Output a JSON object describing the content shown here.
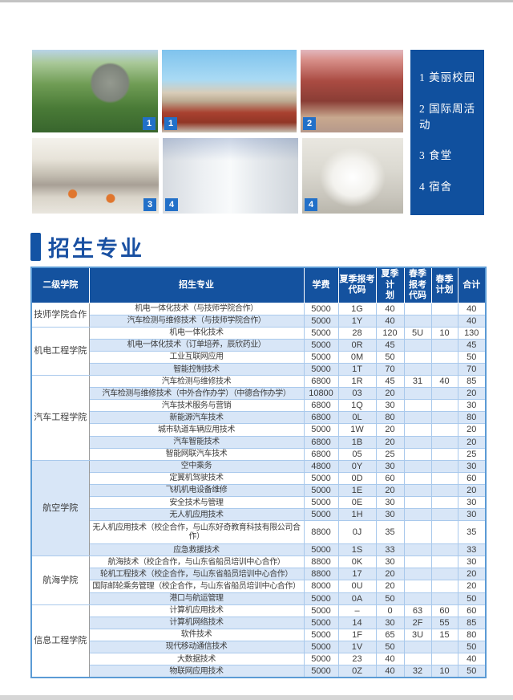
{
  "gallery": {
    "photos": [
      {
        "name": "campus-sculpture",
        "badge": "1"
      },
      {
        "name": "campus-plaza",
        "badge": "1"
      },
      {
        "name": "international-week",
        "badge": "2"
      },
      {
        "name": "canteen",
        "badge": "3"
      },
      {
        "name": "dormitory",
        "badge": "4"
      },
      {
        "name": "hallway",
        "badge": "4"
      }
    ],
    "legend": {
      "items": [
        "1 美丽校园",
        "2 国际周活动",
        "3 食堂",
        "4 宿舍"
      ]
    }
  },
  "section": {
    "title": "招生专业"
  },
  "table": {
    "columns": [
      "二级学院",
      "招生专业",
      "学费",
      "夏季报考\n代码",
      "夏季计\n划",
      "春季\n报考\n代码",
      "春季\n计划",
      "合计"
    ],
    "groups": [
      {
        "college": "技师学院合作",
        "rows": [
          {
            "major": "机电一体化技术（与技师学院合作）",
            "tuition": "5000",
            "summer_code": "1G",
            "summer_plan": "40",
            "spring_code": "",
            "spring_plan": "",
            "total": "40"
          },
          {
            "major": "汽车检测与维修技术（与技师学院合作）",
            "tuition": "5000",
            "summer_code": "1Y",
            "summer_plan": "40",
            "spring_code": "",
            "spring_plan": "",
            "total": "40"
          }
        ]
      },
      {
        "college": "机电工程学院",
        "rows": [
          {
            "major": "机电一体化技术",
            "tuition": "5000",
            "summer_code": "28",
            "summer_plan": "120",
            "spring_code": "5U",
            "spring_plan": "10",
            "total": "130"
          },
          {
            "major": "机电一体化技术（订单培养，辰欣药业）",
            "tuition": "5000",
            "summer_code": "0R",
            "summer_plan": "45",
            "spring_code": "",
            "spring_plan": "",
            "total": "45"
          },
          {
            "major": "工业互联网应用",
            "tuition": "5000",
            "summer_code": "0M",
            "summer_plan": "50",
            "spring_code": "",
            "spring_plan": "",
            "total": "50"
          },
          {
            "major": "智能控制技术",
            "tuition": "5000",
            "summer_code": "1T",
            "summer_plan": "70",
            "spring_code": "",
            "spring_plan": "",
            "total": "70"
          }
        ]
      },
      {
        "college": "汽车工程学院",
        "rows": [
          {
            "major": "汽车检测与维修技术",
            "tuition": "6800",
            "summer_code": "1R",
            "summer_plan": "45",
            "spring_code": "31",
            "spring_plan": "40",
            "total": "85"
          },
          {
            "major": "汽车检测与维修技术（中外合作办学）（中德合作办学）",
            "tuition": "10800",
            "summer_code": "03",
            "summer_plan": "20",
            "spring_code": "",
            "spring_plan": "",
            "total": "20"
          },
          {
            "major": "汽车技术服务与营销",
            "tuition": "6800",
            "summer_code": "1Q",
            "summer_plan": "30",
            "spring_code": "",
            "spring_plan": "",
            "total": "30"
          },
          {
            "major": "新能源汽车技术",
            "tuition": "6800",
            "summer_code": "0L",
            "summer_plan": "80",
            "spring_code": "",
            "spring_plan": "",
            "total": "80"
          },
          {
            "major": "城市轨道车辆应用技术",
            "tuition": "5000",
            "summer_code": "1W",
            "summer_plan": "20",
            "spring_code": "",
            "spring_plan": "",
            "total": "20"
          },
          {
            "major": "汽车智能技术",
            "tuition": "6800",
            "summer_code": "1B",
            "summer_plan": "20",
            "spring_code": "",
            "spring_plan": "",
            "total": "20"
          },
          {
            "major": "智能网联汽车技术",
            "tuition": "6800",
            "summer_code": "05",
            "summer_plan": "25",
            "spring_code": "",
            "spring_plan": "",
            "total": "25"
          }
        ]
      },
      {
        "college": "航空学院",
        "rows": [
          {
            "major": "空中乘务",
            "tuition": "4800",
            "summer_code": "0Y",
            "summer_plan": "30",
            "spring_code": "",
            "spring_plan": "",
            "total": "30"
          },
          {
            "major": "定翼机驾驶技术",
            "tuition": "5000",
            "summer_code": "0D",
            "summer_plan": "60",
            "spring_code": "",
            "spring_plan": "",
            "total": "60"
          },
          {
            "major": "飞机机电设备维修",
            "tuition": "5000",
            "summer_code": "1E",
            "summer_plan": "20",
            "spring_code": "",
            "spring_plan": "",
            "total": "20"
          },
          {
            "major": "安全技术与管理",
            "tuition": "5000",
            "summer_code": "0E",
            "summer_plan": "30",
            "spring_code": "",
            "spring_plan": "",
            "total": "30"
          },
          {
            "major": "无人机应用技术",
            "tuition": "5000",
            "summer_code": "1H",
            "summer_plan": "30",
            "spring_code": "",
            "spring_plan": "",
            "total": "30"
          },
          {
            "major": "无人机应用技术（校企合作，与山东好奇教育科技有限公司合作）",
            "tuition": "8800",
            "summer_code": "0J",
            "summer_plan": "35",
            "spring_code": "",
            "spring_plan": "",
            "total": "35",
            "tall": true
          },
          {
            "major": "应急救援技术",
            "tuition": "5000",
            "summer_code": "1S",
            "summer_plan": "33",
            "spring_code": "",
            "spring_plan": "",
            "total": "33"
          }
        ]
      },
      {
        "college": "航海学院",
        "rows": [
          {
            "major": "航海技术（校企合作，与山东省船员培训中心合作）",
            "tuition": "8800",
            "summer_code": "0K",
            "summer_plan": "30",
            "spring_code": "",
            "spring_plan": "",
            "total": "30"
          },
          {
            "major": "轮机工程技术（校企合作，与山东省船员培训中心合作）",
            "tuition": "8800",
            "summer_code": "17",
            "summer_plan": "20",
            "spring_code": "",
            "spring_plan": "",
            "total": "20"
          },
          {
            "major": "国际邮轮乘务管理（校企合作，与山东省船员培训中心合作）",
            "tuition": "8000",
            "summer_code": "0U",
            "summer_plan": "20",
            "spring_code": "",
            "spring_plan": "",
            "total": "20"
          },
          {
            "major": "港口与航运管理",
            "tuition": "5000",
            "summer_code": "0A",
            "summer_plan": "50",
            "spring_code": "",
            "spring_plan": "",
            "total": "50"
          }
        ]
      },
      {
        "college": "信息工程学院",
        "rows": [
          {
            "major": "计算机应用技术",
            "tuition": "5000",
            "summer_code": "–",
            "summer_plan": "0",
            "spring_code": "63",
            "spring_plan": "60",
            "total": "60"
          },
          {
            "major": "计算机网络技术",
            "tuition": "5000",
            "summer_code": "14",
            "summer_plan": "30",
            "spring_code": "2F",
            "spring_plan": "55",
            "total": "85"
          },
          {
            "major": "软件技术",
            "tuition": "5000",
            "summer_code": "1F",
            "summer_plan": "65",
            "spring_code": "3U",
            "spring_plan": "15",
            "total": "80"
          },
          {
            "major": "现代移动通信技术",
            "tuition": "5000",
            "summer_code": "1V",
            "summer_plan": "50",
            "spring_code": "",
            "spring_plan": "",
            "total": "50"
          },
          {
            "major": "大数据技术",
            "tuition": "5000",
            "summer_code": "23",
            "summer_plan": "40",
            "spring_code": "",
            "spring_plan": "",
            "total": "40"
          },
          {
            "major": "物联网应用技术",
            "tuition": "5000",
            "summer_code": "0Z",
            "summer_plan": "40",
            "spring_code": "32",
            "spring_plan": "10",
            "total": "50"
          }
        ]
      }
    ]
  }
}
